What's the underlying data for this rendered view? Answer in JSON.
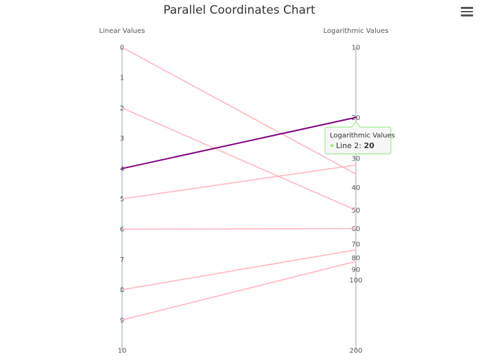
{
  "chart_data": {
    "type": "line",
    "subtype": "parallel-coordinates",
    "title": "Parallel Coordinates Chart",
    "axes": [
      {
        "name": "Linear Values",
        "scale": "linear",
        "range": [
          0,
          10
        ],
        "ticks": [
          0,
          1,
          2,
          3,
          4,
          5,
          6,
          7,
          8,
          9,
          10
        ]
      },
      {
        "name": "Logarithmic Values",
        "scale": "log",
        "range": [
          10,
          200
        ],
        "ticks": [
          10,
          20,
          30,
          40,
          50,
          60,
          70,
          80,
          90,
          100,
          200
        ]
      }
    ],
    "series": [
      {
        "values": [
          0,
          35
        ]
      },
      {
        "values": [
          4,
          20
        ],
        "highlighted": true
      },
      {
        "values": [
          2,
          50
        ]
      },
      {
        "values": [
          5,
          32
        ]
      },
      {
        "values": [
          6,
          60
        ]
      },
      {
        "values": [
          8,
          74
        ]
      },
      {
        "values": [
          9,
          83
        ]
      }
    ],
    "colors": {
      "line": "#ffb6c1",
      "highlight": "#800080",
      "axis": "#b0c4de",
      "tooltip_border": "#90ed7d"
    },
    "tooltip": {
      "title": "Logarithmic Values",
      "label": "Line 2:",
      "value": "20"
    }
  },
  "menu": {
    "icon": "hamburger-menu-icon"
  }
}
